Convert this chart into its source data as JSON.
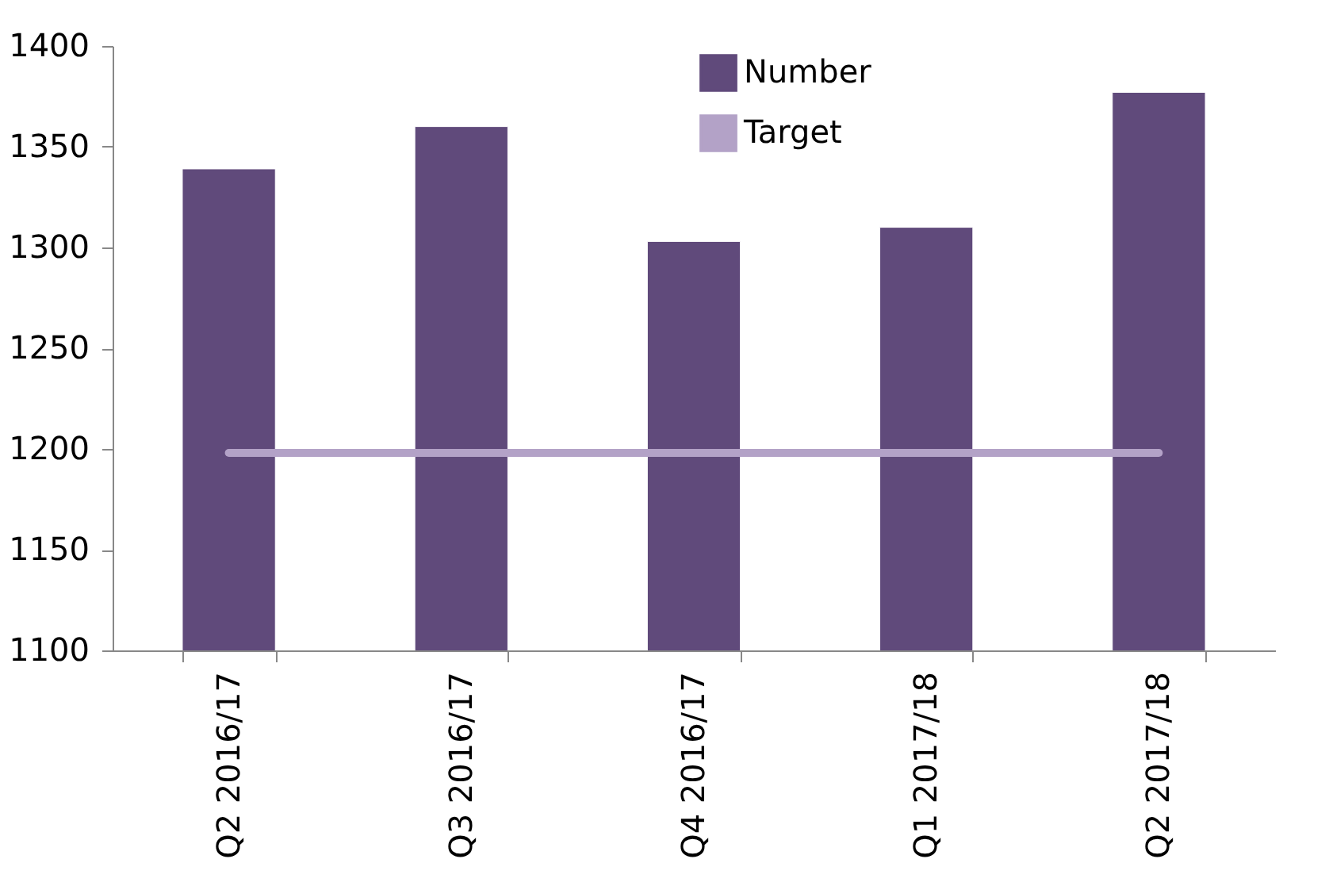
{
  "chart_data": {
    "type": "bar",
    "categories": [
      "Q2 2016/17",
      "Q3 2016/17",
      "Q4 2016/17",
      "Q1 2017/18",
      "Q2 2017/18"
    ],
    "series": [
      {
        "name": "Number",
        "color": "#604a7b",
        "values": [
          1339,
          1360,
          1303,
          1310,
          1377
        ]
      },
      {
        "name": "Target",
        "type": "line",
        "color": "#b3a2c7",
        "values": [
          1198,
          1198,
          1198,
          1198,
          1198
        ]
      }
    ],
    "ylim": [
      1100,
      1400
    ],
    "yticks": [
      1100,
      1150,
      1200,
      1250,
      1300,
      1350,
      1400
    ],
    "grid": false,
    "legend": "top right"
  }
}
